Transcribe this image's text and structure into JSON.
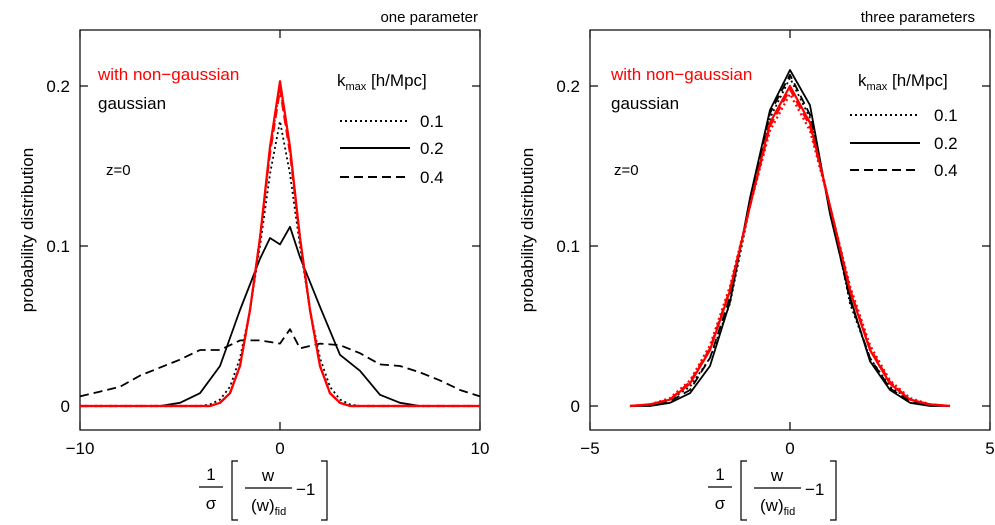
{
  "figure": {
    "colors": {
      "red": "#ff0000",
      "black": "#000000"
    }
  },
  "chart_data": [
    {
      "type": "line",
      "title": "one parameter",
      "ylabel": "probability distribution",
      "xlabel": {
        "frac_num": "1",
        "frac_den": "σ",
        "inner_num": "w",
        "inner_den": "(w)",
        "inner_den_sub": "fid",
        "minus_one": "−1"
      },
      "xlim": [
        -10,
        10
      ],
      "ylim": [
        -0.015,
        0.235
      ],
      "xticks": [
        -10,
        0,
        10
      ],
      "xtick_labels": [
        "−10",
        "0",
        "10"
      ],
      "yticks": [
        0,
        0.1,
        0.2
      ],
      "ytick_labels": [
        "0",
        "0.1",
        "0.2"
      ],
      "legend_lines": [
        {
          "text": "with non−gaussian",
          "color": "#ff0000"
        },
        {
          "text": "gaussian",
          "color": "#000000"
        }
      ],
      "legend_header": {
        "main": "k",
        "sub": "max",
        "rest": " [h/Mpc]"
      },
      "legend_entries": [
        {
          "label": "0.1",
          "dash": "dotted"
        },
        {
          "label": "0.2",
          "dash": "solid"
        },
        {
          "label": "0.4",
          "dash": "dashed"
        }
      ],
      "annotation": "z=0",
      "series": [
        {
          "kmax": "0.1",
          "variant": "gaussian",
          "color": "#000000",
          "dash": "dotted",
          "x": [
            -10,
            -4,
            -3.5,
            -3,
            -2.5,
            -2,
            -1.5,
            -1,
            -0.5,
            0,
            0.5,
            1,
            1.5,
            2,
            2.5,
            3,
            3.5,
            4,
            10
          ],
          "y": [
            0,
            0,
            0.001,
            0.004,
            0.012,
            0.03,
            0.06,
            0.1,
            0.145,
            0.178,
            0.145,
            0.1,
            0.06,
            0.03,
            0.012,
            0.004,
            0.001,
            0,
            0
          ]
        },
        {
          "kmax": "0.2",
          "variant": "gaussian",
          "color": "#000000",
          "dash": "solid",
          "x": [
            -10,
            -6,
            -5,
            -4,
            -3,
            -2,
            -1,
            -0.5,
            0,
            0.5,
            1,
            2,
            3,
            4,
            5,
            6,
            7,
            10
          ],
          "y": [
            0,
            0,
            0.002,
            0.008,
            0.025,
            0.06,
            0.092,
            0.105,
            0.101,
            0.112,
            0.093,
            0.062,
            0.032,
            0.022,
            0.007,
            0.002,
            0,
            0
          ]
        },
        {
          "kmax": "0.4",
          "variant": "gaussian",
          "color": "#000000",
          "dash": "dashed",
          "x": [
            -10,
            -9,
            -8,
            -7,
            -6,
            -5,
            -4,
            -3,
            -2,
            -1,
            0,
            0.5,
            1,
            2,
            3,
            4,
            5,
            6,
            7,
            8,
            9,
            10
          ],
          "y": [
            0.006,
            0.009,
            0.012,
            0.019,
            0.024,
            0.029,
            0.035,
            0.035,
            0.041,
            0.041,
            0.039,
            0.048,
            0.036,
            0.039,
            0.038,
            0.033,
            0.026,
            0.025,
            0.021,
            0.016,
            0.01,
            0.006
          ]
        },
        {
          "kmax": "0.1",
          "variant": "with non−gaussian",
          "color": "#ff0000",
          "dash": "dotted",
          "x": [
            -10,
            -3.5,
            -3,
            -2.5,
            -2,
            -1.5,
            -1,
            -0.5,
            0,
            0.5,
            1,
            1.5,
            2,
            2.5,
            3,
            3.5,
            10
          ],
          "y": [
            0,
            0,
            0.002,
            0.008,
            0.025,
            0.06,
            0.105,
            0.16,
            0.2,
            0.16,
            0.105,
            0.06,
            0.025,
            0.008,
            0.002,
            0,
            0
          ]
        },
        {
          "kmax": "0.2",
          "variant": "with non−gaussian",
          "color": "#ff0000",
          "dash": "solid",
          "x": [
            -10,
            -3.5,
            -3,
            -2.5,
            -2,
            -1.5,
            -1,
            -0.5,
            0,
            0.5,
            1,
            1.5,
            2,
            2.5,
            3,
            3.5,
            10
          ],
          "y": [
            0,
            0,
            0.002,
            0.008,
            0.025,
            0.06,
            0.105,
            0.162,
            0.203,
            0.162,
            0.105,
            0.06,
            0.025,
            0.008,
            0.002,
            0,
            0
          ]
        },
        {
          "kmax": "0.4",
          "variant": "with non−gaussian",
          "color": "#ff0000",
          "dash": "dashed",
          "x": [
            -10,
            -3.5,
            -3,
            -2.5,
            -2,
            -1.5,
            -1,
            -0.5,
            0,
            0.5,
            1,
            1.5,
            2,
            2.5,
            3,
            3.5,
            10
          ],
          "y": [
            0,
            0,
            0.002,
            0.008,
            0.025,
            0.06,
            0.105,
            0.158,
            0.198,
            0.158,
            0.105,
            0.06,
            0.025,
            0.008,
            0.002,
            0,
            0
          ]
        }
      ]
    },
    {
      "type": "line",
      "title": "three parameters",
      "ylabel": "probability distribution",
      "xlabel": {
        "frac_num": "1",
        "frac_den": "σ",
        "inner_num": "w",
        "inner_den": "(w)",
        "inner_den_sub": "fid",
        "minus_one": "−1"
      },
      "xlim": [
        -5,
        5
      ],
      "ylim": [
        -0.015,
        0.235
      ],
      "xticks": [
        -5,
        0,
        5
      ],
      "xtick_labels": [
        "−5",
        "0",
        "5"
      ],
      "yticks": [
        0,
        0.1,
        0.2
      ],
      "ytick_labels": [
        "0",
        "0.1",
        "0.2"
      ],
      "legend_lines": [
        {
          "text": "with non−gaussian",
          "color": "#ff0000"
        },
        {
          "text": "gaussian",
          "color": "#000000"
        }
      ],
      "legend_header": {
        "main": "k",
        "sub": "max",
        "rest": " [h/Mpc]"
      },
      "legend_entries": [
        {
          "label": "0.1",
          "dash": "dotted"
        },
        {
          "label": "0.2",
          "dash": "solid"
        },
        {
          "label": "0.4",
          "dash": "dashed"
        }
      ],
      "annotation": "z=0",
      "series": [
        {
          "kmax": "0.1",
          "variant": "gaussian",
          "color": "#000000",
          "dash": "dotted",
          "x": [
            -4,
            -3.5,
            -3,
            -2.5,
            -2,
            -1.5,
            -1,
            -0.5,
            0,
            0.5,
            1,
            1.5,
            2,
            2.5,
            3,
            3.5,
            4
          ],
          "y": [
            0,
            0.001,
            0.004,
            0.012,
            0.03,
            0.064,
            0.125,
            0.18,
            0.205,
            0.18,
            0.125,
            0.064,
            0.03,
            0.012,
            0.004,
            0.001,
            0
          ]
        },
        {
          "kmax": "0.2",
          "variant": "gaussian",
          "color": "#000000",
          "dash": "solid",
          "x": [
            -4,
            -3.5,
            -3,
            -2.5,
            -2,
            -1.5,
            -1,
            -0.5,
            0,
            0.5,
            1,
            1.5,
            2,
            2.5,
            3,
            3.5,
            4
          ],
          "y": [
            0,
            0,
            0.002,
            0.008,
            0.025,
            0.065,
            0.13,
            0.185,
            0.21,
            0.188,
            0.12,
            0.068,
            0.028,
            0.01,
            0.002,
            0,
            0
          ]
        },
        {
          "kmax": "0.4",
          "variant": "gaussian",
          "color": "#000000",
          "dash": "dashed",
          "x": [
            -4,
            -3.5,
            -3,
            -2.5,
            -2,
            -1.5,
            -1,
            -0.5,
            0,
            0.5,
            1,
            1.5,
            2,
            2.5,
            3,
            3.5,
            4
          ],
          "y": [
            0,
            0.001,
            0.003,
            0.01,
            0.03,
            0.068,
            0.128,
            0.183,
            0.207,
            0.182,
            0.122,
            0.066,
            0.03,
            0.011,
            0.003,
            0.001,
            0
          ]
        },
        {
          "kmax": "0.1",
          "variant": "with non−gaussian",
          "color": "#ff0000",
          "dash": "dotted",
          "x": [
            -4,
            -3.5,
            -3,
            -2.5,
            -2,
            -1.5,
            -1,
            -0.5,
            0,
            0.5,
            1,
            1.5,
            2,
            2.5,
            3,
            3.5,
            4
          ],
          "y": [
            0,
            0.001,
            0.005,
            0.016,
            0.038,
            0.075,
            0.125,
            0.172,
            0.195,
            0.172,
            0.125,
            0.075,
            0.038,
            0.016,
            0.005,
            0.001,
            0
          ]
        },
        {
          "kmax": "0.2",
          "variant": "with non−gaussian",
          "color": "#ff0000",
          "dash": "solid",
          "x": [
            -4,
            -3.5,
            -3,
            -2.5,
            -2,
            -1.5,
            -1,
            -0.5,
            0,
            0.5,
            1,
            1.5,
            2,
            2.5,
            3,
            3.5,
            4
          ],
          "y": [
            0,
            0.001,
            0.004,
            0.014,
            0.035,
            0.072,
            0.125,
            0.177,
            0.2,
            0.177,
            0.125,
            0.072,
            0.035,
            0.014,
            0.004,
            0.001,
            0
          ]
        },
        {
          "kmax": "0.4",
          "variant": "with non−gaussian",
          "color": "#ff0000",
          "dash": "dashed",
          "x": [
            -4,
            -3.5,
            -3,
            -2.5,
            -2,
            -1.5,
            -1,
            -0.5,
            0,
            0.5,
            1,
            1.5,
            2,
            2.5,
            3,
            3.5,
            4
          ],
          "y": [
            0,
            0.001,
            0.004,
            0.015,
            0.036,
            0.073,
            0.125,
            0.175,
            0.198,
            0.175,
            0.125,
            0.073,
            0.036,
            0.015,
            0.004,
            0.001,
            0
          ]
        }
      ]
    }
  ]
}
